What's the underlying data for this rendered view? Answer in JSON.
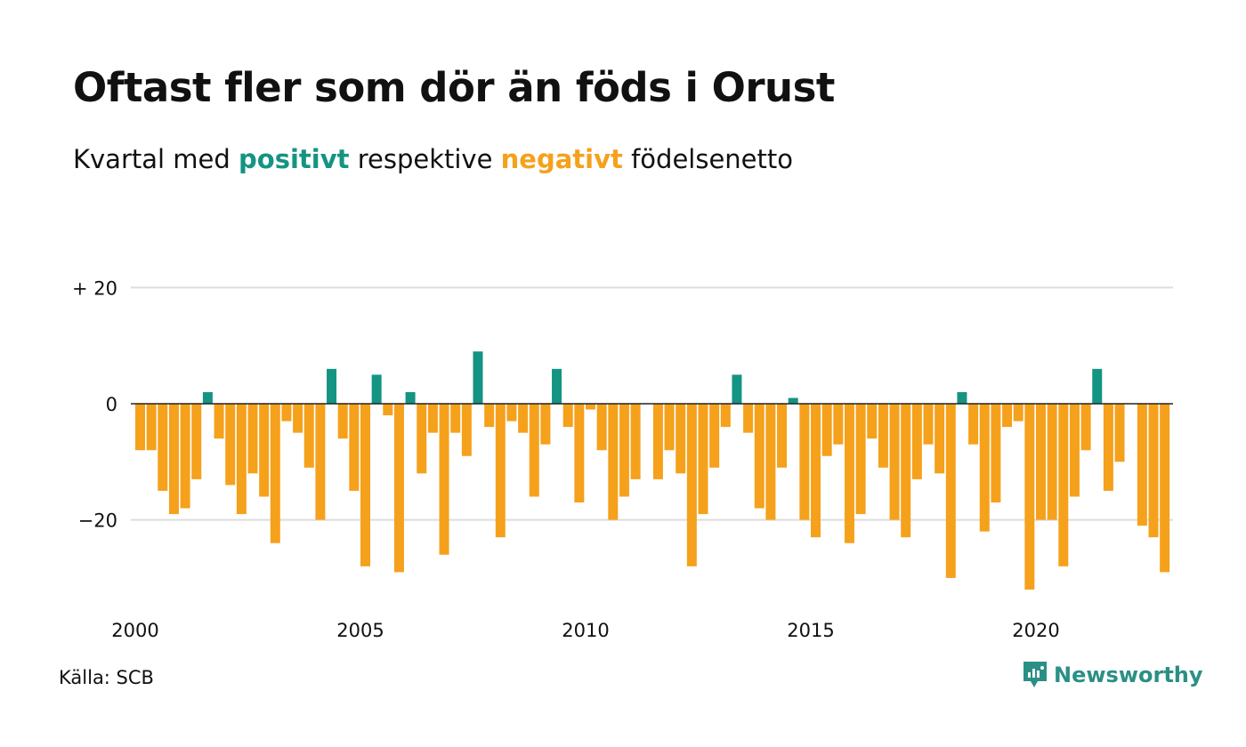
{
  "title": "Oftast fler som dör än föds i Orust",
  "subtitle": {
    "prefix": "Kvartal med",
    "positive_word": "positivt",
    "middle": "respektive",
    "negative_word": "negativt",
    "suffix": "födelsenetto"
  },
  "source": "Källa: SCB",
  "brand": {
    "name": "Newsworthy",
    "icon": "newsworthy-logo-icon"
  },
  "colors": {
    "positive": "#149482",
    "negative": "#f5a11c",
    "grid": "#dddddd"
  },
  "chart_data": {
    "type": "bar",
    "x_start": 2000,
    "periods_per_year": 4,
    "xticks": [
      2000,
      2005,
      2010,
      2015,
      2020
    ],
    "ytick_labels": [
      {
        "value": 20,
        "label": "+ 20"
      },
      {
        "value": 0,
        "label": "0"
      },
      {
        "value": -20,
        "label": "−20"
      }
    ],
    "ylim": [
      -35,
      22
    ],
    "grid": true,
    "values": [
      -8,
      -8,
      -15,
      -19,
      -18,
      -13,
      2,
      -6,
      -14,
      -19,
      -12,
      -16,
      -24,
      -3,
      -5,
      -11,
      -20,
      6,
      -6,
      -15,
      -28,
      5,
      -2,
      -29,
      2,
      -12,
      -5,
      -26,
      -5,
      -9,
      9,
      -4,
      -23,
      -3,
      -5,
      -16,
      -7,
      6,
      -4,
      -17,
      -1,
      -8,
      -20,
      -16,
      -13,
      0,
      -13,
      -8,
      -12,
      -28,
      -19,
      -11,
      -4,
      5,
      -5,
      -18,
      -20,
      -11,
      1,
      -20,
      -23,
      -9,
      -7,
      -24,
      -19,
      -6,
      -11,
      -20,
      -23,
      -13,
      -7,
      -12,
      -30,
      2,
      -7,
      -22,
      -17,
      -4,
      -3,
      -32,
      -20,
      -20,
      -28,
      -16,
      -8,
      6,
      -15,
      -10,
      0,
      -21,
      -23,
      -29
    ]
  }
}
